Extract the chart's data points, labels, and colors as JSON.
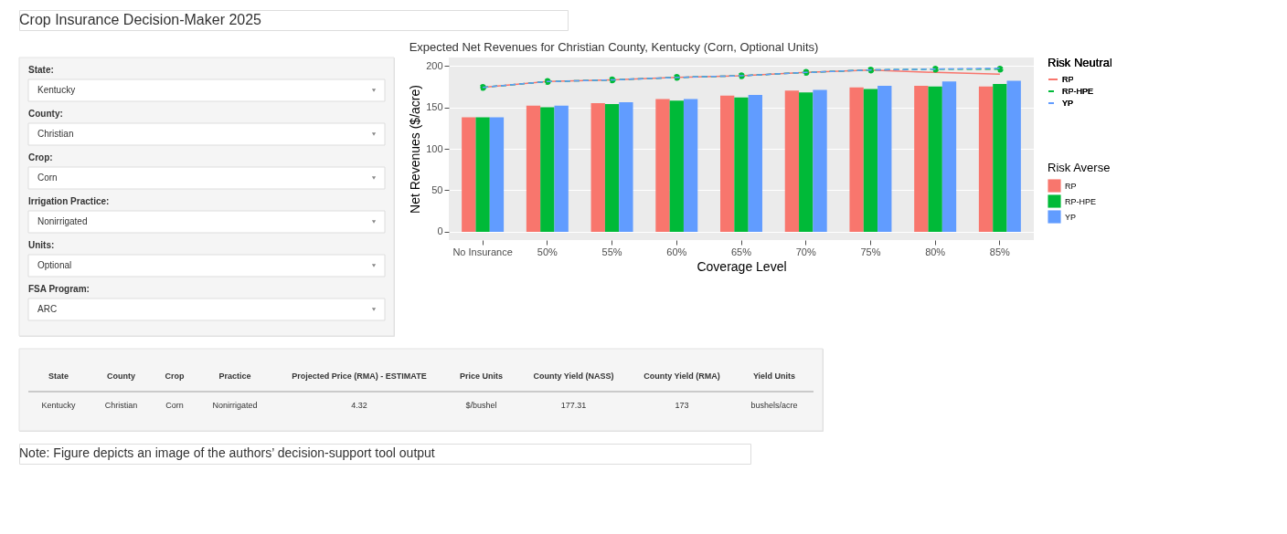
{
  "chart_data": {
    "type": "bar",
    "title": "Expected Net Revenues for Christian County, Kentucky (Corn, Optional Units)",
    "xlabel": "Coverage Level",
    "ylabel": "Net Revenues ($/acre)",
    "legend_title": [
      "Risk Neutral",
      "Risk Averse"
    ],
    "categories": [
      "No Insurance",
      "50%",
      "55%",
      "60%",
      "65%",
      "70%",
      "75%",
      "80%",
      "85%"
    ],
    "series": [
      {
        "name": "RP",
        "type": "bar",
        "color": "#f8766d",
        "values": [
          138,
          152,
          155,
          160,
          164,
          170,
          174,
          176,
          175
        ]
      },
      {
        "name": "RP-HPE",
        "type": "bar",
        "color": "#00ba38",
        "values": [
          138,
          150,
          154,
          158,
          162,
          168,
          172,
          175,
          178
        ]
      },
      {
        "name": "YP",
        "type": "bar",
        "color": "#619cff",
        "values": [
          138,
          152,
          156,
          160,
          165,
          171,
          176,
          181,
          182
        ]
      },
      {
        "name": "RP",
        "type": "line",
        "color": "#f8766d",
        "line_style": "solid",
        "marker": "none",
        "values": [
          174,
          181,
          183,
          186,
          188,
          192,
          195,
          192,
          190
        ]
      },
      {
        "name": "RP-HPE",
        "type": "line",
        "color": "#00ba38",
        "line_style": "dashed",
        "marker": "circle",
        "values": [
          174,
          181,
          183,
          186,
          188,
          192,
          195,
          196,
          196
        ]
      },
      {
        "name": "YP",
        "type": "line",
        "color": "#619cff",
        "line_style": "dashed",
        "marker": "none",
        "values": [
          174,
          181,
          183,
          186,
          188,
          192,
          195,
          196,
          197
        ]
      }
    ],
    "ylim": [
      -10,
      210
    ],
    "yticks": [
      0,
      50,
      100,
      150,
      200
    ],
    "grid": "y",
    "legend": "right",
    "annotations": [
      "Crop Insurance Decision-Maker 2025",
      "State:",
      "Kentucky",
      "County:",
      "Christian",
      "Crop:",
      "Corn",
      "Irrigation Practice:",
      "Nonirrigated",
      "Units:",
      "Optional",
      "FSA Program:",
      "ARC",
      "State",
      "County",
      "Crop",
      "Practice",
      "Projected Price (RMA) - ESTIMATE",
      "Price Units",
      "County Yield (NASS)",
      "County Yield (RMA)",
      "Yield Units",
      "Kentucky",
      "Christian",
      "Corn",
      "Nonirrigated",
      "4.32",
      "$/bushel",
      "177.31",
      "173",
      "bushels/acre",
      "Note: Figure depicts an image of the authors’ decision-support tool output"
    ]
  }
}
